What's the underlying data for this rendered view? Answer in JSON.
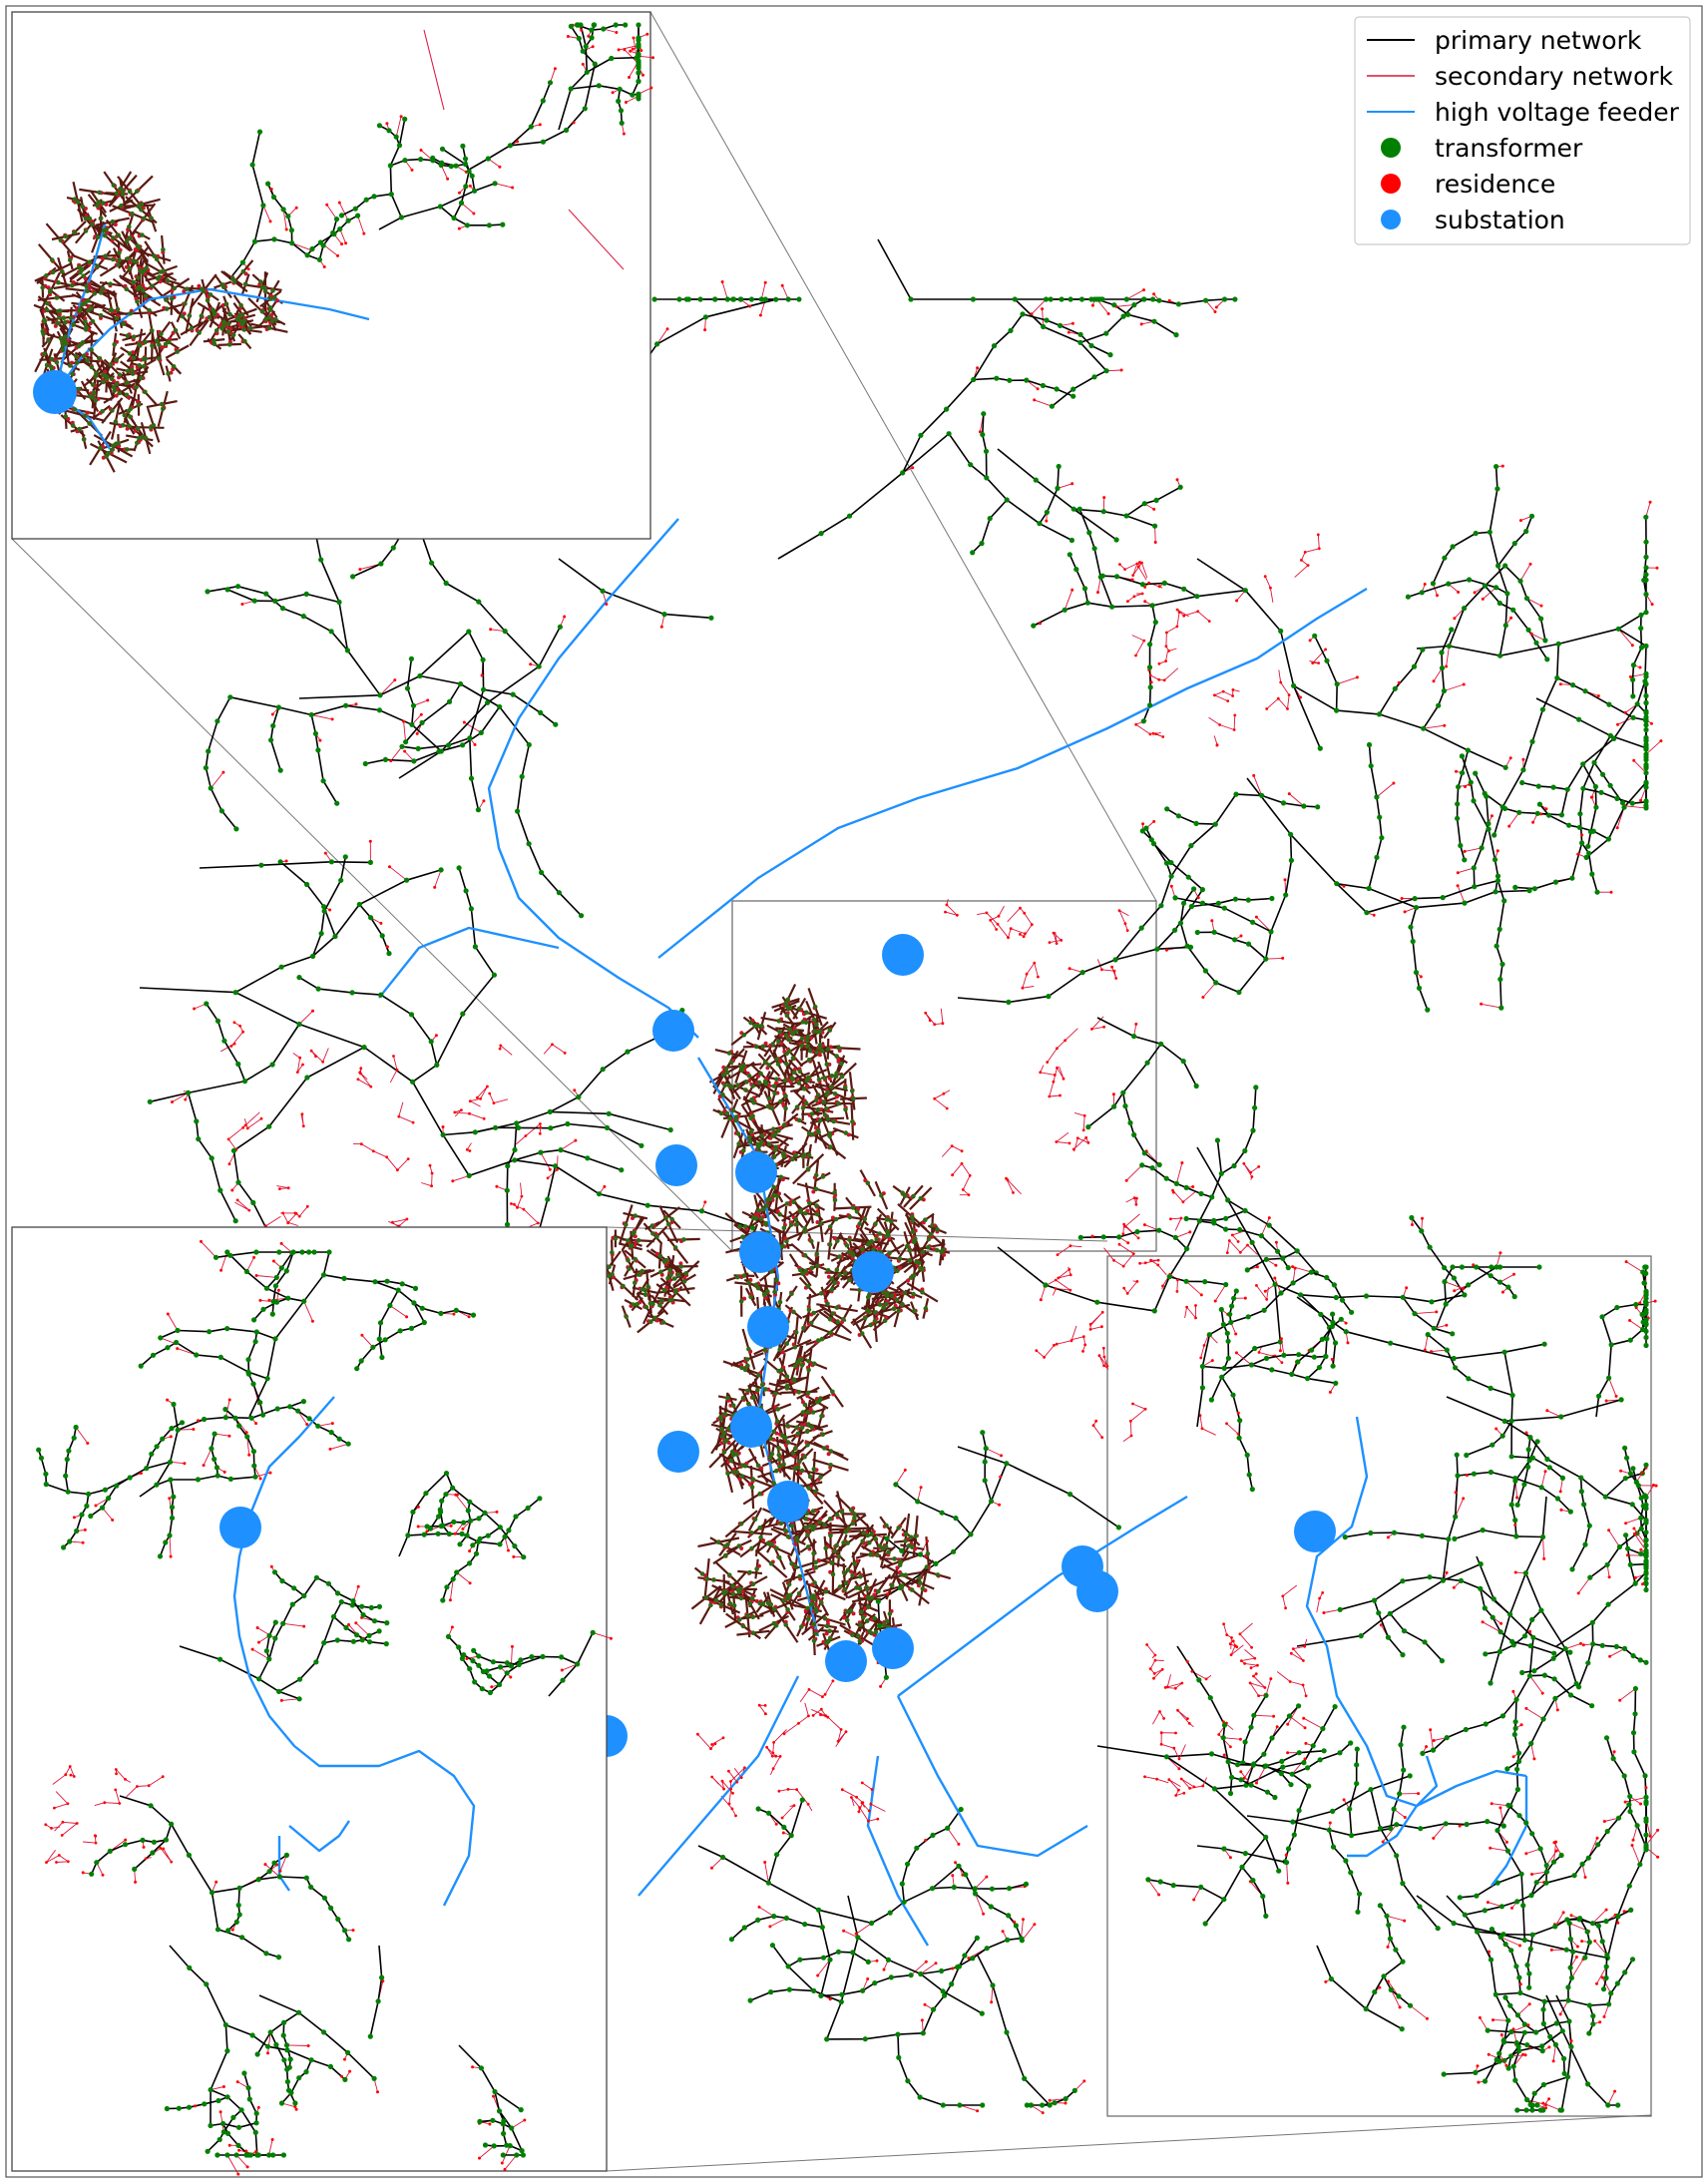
{
  "legend": {
    "items": [
      {
        "label": "primary network",
        "kind": "line",
        "color": "#000000"
      },
      {
        "label": "secondary network",
        "kind": "line",
        "color": "#dc143c"
      },
      {
        "label": "high voltage feeder",
        "kind": "line",
        "color": "#1e90ff"
      },
      {
        "label": "transformer",
        "kind": "dot",
        "color": "#008000"
      },
      {
        "label": "residence",
        "kind": "dot",
        "color": "#ff0000"
      },
      {
        "label": "substation",
        "kind": "dot",
        "color": "#1e90ff"
      }
    ]
  },
  "colors": {
    "primary": "#000000",
    "secondary": "#dc143c",
    "feeder": "#1e90ff",
    "transformer": "#008000",
    "residence": "#ff0000",
    "substation": "#1e90ff",
    "frame": "#555555"
  },
  "insets": [
    {
      "name": "inset-top-left",
      "region": "north-east region"
    },
    {
      "name": "inset-bottom-left",
      "region": "central region"
    },
    {
      "name": "inset-bottom-right",
      "region": "east region"
    }
  ]
}
